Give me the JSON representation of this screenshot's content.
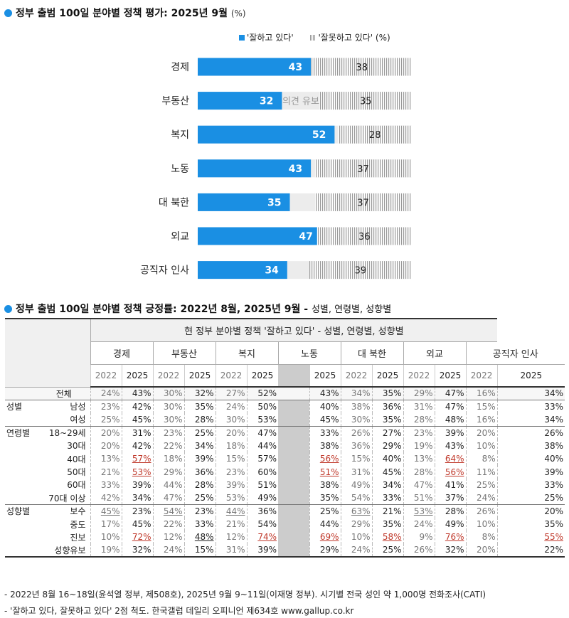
{
  "title1": {
    "main": "정부 출범 100일 분야별 정책 평가: 2025년 9월",
    "unit": "(%)"
  },
  "legend": {
    "positive": "'잘하고 있다'",
    "negative": "'잘못하고 있다' (%)"
  },
  "colors": {
    "positive": "#1a8fe3",
    "negative_stripe": "#999999",
    "gap_fill": "#ececec"
  },
  "chart_data": {
    "type": "bar",
    "categories": [
      "경제",
      "부동산",
      "복지",
      "노동",
      "대 북한",
      "외교",
      "공직자 인사"
    ],
    "series": [
      {
        "name": "'잘하고 있다'",
        "values": [
          43,
          32,
          52,
          43,
          35,
          47,
          34
        ]
      },
      {
        "name": "'잘못하고 있다'",
        "values": [
          38,
          35,
          28,
          37,
          37,
          36,
          39
        ]
      }
    ],
    "annotation": "의견 유보"
  },
  "title2": {
    "main": "정부 출범 100일 분야별 정책 긍정률: 2022년 8월, 2025년 9월 -",
    "sub": "성별, 연령별, 성향별"
  },
  "table": {
    "header": "현 정부 분야별 정책 '잘하고 있다' - 성별, 연령별, 성향별",
    "fields": [
      "경제",
      "부동산",
      "복지",
      "노동",
      "대 북한",
      "외교",
      "공직자 인사"
    ],
    "years": [
      "2022",
      "2025"
    ],
    "rows": [
      {
        "g": "",
        "l": "전체",
        "v": [
          "24%",
          "43%",
          "30%",
          "32%",
          "27%",
          "52%",
          "43%",
          "34%",
          "35%",
          "29%",
          "47%",
          "16%",
          "34%"
        ]
      },
      {
        "g": "성별",
        "l": "남성",
        "v": [
          "23%",
          "42%",
          "30%",
          "35%",
          "24%",
          "50%",
          "40%",
          "38%",
          "36%",
          "31%",
          "47%",
          "15%",
          "33%"
        ]
      },
      {
        "g": "",
        "l": "여성",
        "v": [
          "25%",
          "45%",
          "30%",
          "28%",
          "30%",
          "53%",
          "45%",
          "30%",
          "35%",
          "28%",
          "48%",
          "16%",
          "34%"
        ]
      },
      {
        "g": "연령별",
        "l": "18~29세",
        "v": [
          "20%",
          "31%",
          "23%",
          "25%",
          "20%",
          "47%",
          "33%",
          "26%",
          "27%",
          "23%",
          "39%",
          "20%",
          "26%"
        ]
      },
      {
        "g": "",
        "l": "30대",
        "v": [
          "20%",
          "42%",
          "22%",
          "34%",
          "18%",
          "44%",
          "38%",
          "36%",
          "29%",
          "19%",
          "43%",
          "10%",
          "38%"
        ]
      },
      {
        "g": "",
        "l": "40대",
        "v": [
          "13%",
          "57%",
          "18%",
          "39%",
          "15%",
          "57%",
          "56%",
          "15%",
          "40%",
          "13%",
          "64%",
          "8%",
          "40%"
        ]
      },
      {
        "g": "",
        "l": "50대",
        "v": [
          "21%",
          "53%",
          "29%",
          "36%",
          "23%",
          "60%",
          "51%",
          "31%",
          "45%",
          "28%",
          "56%",
          "11%",
          "39%"
        ]
      },
      {
        "g": "",
        "l": "60대",
        "v": [
          "33%",
          "39%",
          "44%",
          "28%",
          "39%",
          "51%",
          "38%",
          "49%",
          "34%",
          "47%",
          "41%",
          "25%",
          "33%"
        ]
      },
      {
        "g": "",
        "l": "70대 이상",
        "v": [
          "42%",
          "34%",
          "47%",
          "25%",
          "53%",
          "49%",
          "35%",
          "54%",
          "33%",
          "51%",
          "37%",
          "24%",
          "25%"
        ]
      },
      {
        "g": "성향별",
        "l": "보수",
        "v": [
          "45%",
          "23%",
          "54%",
          "23%",
          "44%",
          "36%",
          "25%",
          "63%",
          "21%",
          "53%",
          "28%",
          "26%",
          "20%"
        ]
      },
      {
        "g": "",
        "l": "중도",
        "v": [
          "17%",
          "45%",
          "22%",
          "33%",
          "21%",
          "54%",
          "44%",
          "29%",
          "35%",
          "24%",
          "49%",
          "10%",
          "35%"
        ]
      },
      {
        "g": "",
        "l": "진보",
        "v": [
          "10%",
          "72%",
          "12%",
          "48%",
          "12%",
          "74%",
          "69%",
          "10%",
          "58%",
          "9%",
          "76%",
          "8%",
          "55%"
        ]
      },
      {
        "g": "",
        "l": "성향유보",
        "v": [
          "19%",
          "32%",
          "24%",
          "15%",
          "31%",
          "39%",
          "29%",
          "24%",
          "25%",
          "26%",
          "32%",
          "20%",
          "22%"
        ]
      }
    ],
    "highlight_red": [
      [
        5,
        1
      ],
      [
        5,
        6
      ],
      [
        5,
        10
      ],
      [
        6,
        1
      ],
      [
        6,
        6
      ],
      [
        6,
        10
      ],
      [
        11,
        1
      ],
      [
        11,
        5
      ],
      [
        11,
        6
      ],
      [
        11,
        8
      ],
      [
        11,
        10
      ],
      [
        11,
        12
      ]
    ],
    "highlight_plain": [
      [
        9,
        0
      ],
      [
        9,
        2
      ],
      [
        9,
        4
      ],
      [
        9,
        7
      ],
      [
        9,
        9
      ],
      [
        11,
        3
      ]
    ]
  },
  "notes": [
    "- 2022년 8월 16~18일(윤석열 정부, 제508호), 2025년 9월 9~11일(이재명 정부). 시기별 전국 성인 약 1,000명 전화조사(CATI)",
    "- '잘하고 있다, 잘못하고 있다' 2점 척도. 한국갤럽 데일리 오피니언 제634호 www.gallup.co.kr"
  ]
}
